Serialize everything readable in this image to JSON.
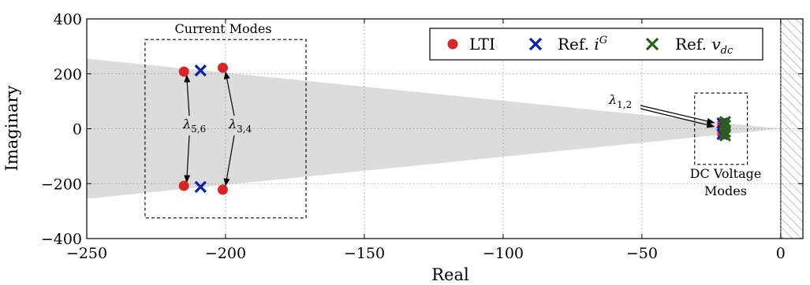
{
  "chart_data": {
    "type": "scatter",
    "xlabel": "Real",
    "ylabel": "Imaginary",
    "xlim": [
      -250,
      8
    ],
    "ylim": [
      -400,
      400
    ],
    "x_ticks": [
      "−250",
      "−200",
      "−150",
      "−100",
      "−50",
      "0"
    ],
    "y_ticks": [
      "400",
      "200",
      "0",
      "−200",
      "−400"
    ],
    "x_tick_values": [
      -250,
      -200,
      -150,
      -100,
      -50,
      0
    ],
    "y_tick_values": [
      400,
      200,
      0,
      -200,
      -400
    ],
    "grid": true,
    "legend_position": "top-right",
    "shaded_region": {
      "description": "grey damping sector",
      "color": "#dcdcdc",
      "apex": [
        0,
        0
      ],
      "left_edge": [
        -250,
        -255,
        255
      ]
    },
    "unstable_region_from_x": 0,
    "series": [
      {
        "name": "LTI",
        "marker": "circle",
        "color": "#d62728",
        "points": [
          [
            -215,
            208
          ],
          [
            -215,
            -208
          ],
          [
            -201,
            222
          ],
          [
            -201,
            -222
          ],
          [
            -21,
            22
          ],
          [
            -21,
            -22
          ],
          [
            -21,
            10
          ],
          [
            -21,
            -10
          ]
        ]
      },
      {
        "name": "Ref. i^G",
        "marker": "x",
        "color": "#0a1fa8",
        "points": [
          [
            -209,
            212
          ],
          [
            -209,
            -212
          ],
          [
            -21,
            20
          ],
          [
            -21,
            -20
          ]
        ]
      },
      {
        "name": "Ref. v_dc",
        "marker": "x",
        "color": "#2a5e1e",
        "points": [
          [
            -20,
            25
          ],
          [
            -20,
            -25
          ],
          [
            -20,
            12
          ],
          [
            -20,
            -12
          ]
        ]
      }
    ],
    "legend": {
      "lti": "LTI",
      "ref_prefix": "Ref. ",
      "ig_var": "i",
      "ig_sup": "G",
      "vdc_var": "v",
      "vdc_sub": "dc"
    },
    "annotations": {
      "current_modes": "Current Modes",
      "dc_voltage_line1": "DC Voltage",
      "dc_voltage_line2": "Modes",
      "lambda_symbol": "λ",
      "lambda_56_sub": "5,6",
      "lambda_34_sub": "3,4",
      "lambda_12_sub": "1,2"
    },
    "boxes": [
      {
        "name": "current-modes-box",
        "x": [
          -229,
          -171
        ],
        "y": [
          -325,
          325
        ]
      },
      {
        "name": "dc-voltage-box",
        "x": [
          -31,
          -12
        ],
        "y": [
          -130,
          130
        ]
      }
    ]
  }
}
